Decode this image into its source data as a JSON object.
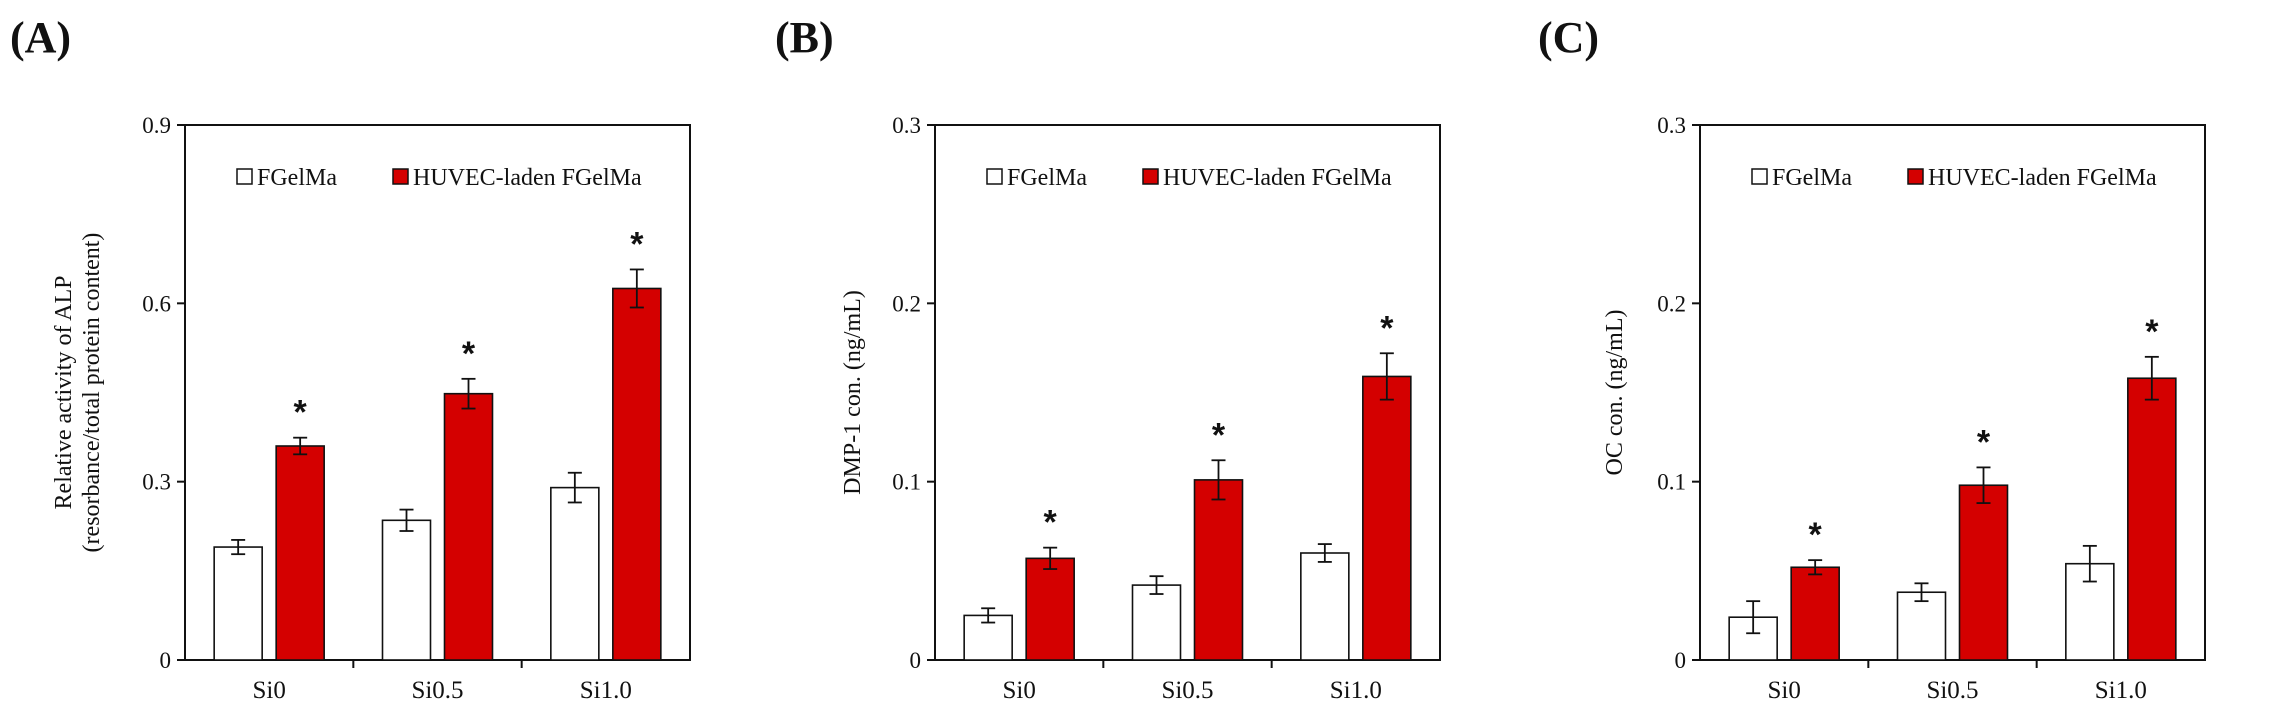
{
  "colors": {
    "series0_fill": "#ffffff",
    "series1_fill": "#d40000",
    "stroke": "#111111"
  },
  "chart_data": [
    {
      "type": "bar",
      "panel_label": "(A)",
      "categories": [
        "Si0",
        "Si0.5",
        "Si1.0"
      ],
      "series": [
        {
          "name": "FGelMa",
          "values": [
            0.19,
            0.235,
            0.29
          ],
          "errors": [
            0.012,
            0.018,
            0.025
          ]
        },
        {
          "name": "HUVEC-laden FGelMa",
          "values": [
            0.36,
            0.448,
            0.625
          ],
          "errors": [
            0.014,
            0.025,
            0.032
          ]
        }
      ],
      "significance": [
        "*",
        "*",
        "*"
      ],
      "ylabel": [
        "Relative activity of ALP",
        "(resorbance/total protein content)"
      ],
      "ylim": [
        0,
        0.9
      ],
      "yticks": [
        "0",
        "0.3",
        "0.6",
        "0.9"
      ],
      "legend": "top"
    },
    {
      "type": "bar",
      "panel_label": "(B)",
      "categories": [
        "Si0",
        "Si0.5",
        "Si1.0"
      ],
      "series": [
        {
          "name": "FGelMa",
          "values": [
            0.025,
            0.042,
            0.06
          ],
          "errors": [
            0.004,
            0.005,
            0.005
          ]
        },
        {
          "name": "HUVEC-laden FGelMa",
          "values": [
            0.057,
            0.101,
            0.159
          ],
          "errors": [
            0.006,
            0.011,
            0.013
          ]
        }
      ],
      "significance": [
        "*",
        "*",
        "*"
      ],
      "ylabel": [
        "DMP-1 con. (ng/mL)"
      ],
      "ylim": [
        0,
        0.3
      ],
      "yticks": [
        "0",
        "0.1",
        "0.2",
        "0.3"
      ],
      "legend": "top"
    },
    {
      "type": "bar",
      "panel_label": "(C)",
      "categories": [
        "Si0",
        "Si0.5",
        "Si1.0"
      ],
      "series": [
        {
          "name": "FGelMa",
          "values": [
            0.024,
            0.038,
            0.054
          ],
          "errors": [
            0.009,
            0.005,
            0.01
          ]
        },
        {
          "name": "HUVEC-laden FGelMa",
          "values": [
            0.052,
            0.098,
            0.158
          ],
          "errors": [
            0.004,
            0.01,
            0.012
          ]
        }
      ],
      "significance": [
        "*",
        "*",
        "*"
      ],
      "ylabel": [
        "OC con. (ng/mL)"
      ],
      "ylim": [
        0,
        0.3
      ],
      "yticks": [
        "0",
        "0.1",
        "0.2",
        "0.3"
      ],
      "legend": "top"
    }
  ]
}
